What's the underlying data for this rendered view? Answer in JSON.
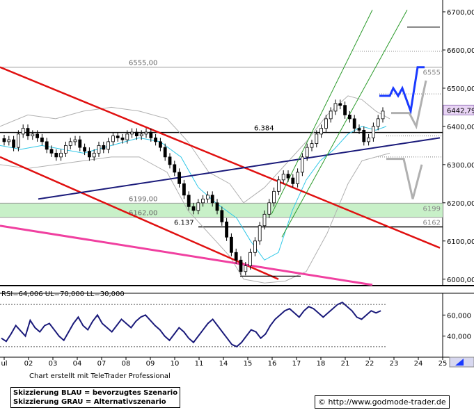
{
  "chart_data": [
    {
      "type": "candlestick",
      "subtype": "price",
      "ylim": [
        5985,
        6720
      ],
      "y_ticks": [
        "6000,00",
        "6100,00",
        "6200,00",
        "6300,00",
        "6400,00",
        "6500,00",
        "6600,00",
        "6700,00"
      ],
      "last_price_label": "6442,79",
      "x_tick_labels": [
        "ul",
        "02",
        "03",
        "04",
        "07",
        "08",
        "09",
        "10",
        "11",
        "14",
        "15",
        "16",
        "17",
        "18",
        "21",
        "22",
        "23",
        "24",
        "25"
      ],
      "horizontal_levels": [
        {
          "value": 6555,
          "label_left": "6555,00",
          "label_right": "6555",
          "color": "#999999"
        },
        {
          "value": 6384,
          "label_left": "6.384",
          "color": "#000000"
        },
        {
          "value": 6199,
          "label_left": "6199,00",
          "label_right": "6199",
          "color": "#999999"
        },
        {
          "value": 6162,
          "label_left": "6162,00",
          "label_right": "6162",
          "color": "#999999"
        },
        {
          "value": 6137,
          "label_left": "6.137",
          "color": "#000000"
        }
      ],
      "support_zone": {
        "from": 6162,
        "to": 6199,
        "color": "#c8f0c8"
      },
      "trend_lines": [
        {
          "name": "red-upper-channel",
          "color": "#e01010"
        },
        {
          "name": "red-lower-channel",
          "color": "#e01010"
        },
        {
          "name": "navy-support",
          "color": "#1a1a7a"
        },
        {
          "name": "pink-support",
          "color": "#f040a0"
        },
        {
          "name": "green-upper",
          "color": "#2a9a2a"
        },
        {
          "name": "green-lower",
          "color": "#2a9a2a"
        }
      ],
      "scenario_colors": {
        "blue": "#1a3aff",
        "grey": "#b0b0b0"
      }
    },
    {
      "type": "line",
      "subtype": "indicator",
      "label": "RSI=64,006 UL=70,000 LL=30,000",
      "ylim": [
        20,
        80
      ],
      "y_ticks": [
        "40,000",
        "60,000"
      ],
      "upper_level": 70,
      "lower_level": 30,
      "color": "#1a1a7a"
    }
  ],
  "footer": {
    "credit": "Chart erstellt mit TeleTrader Professional",
    "legend_blue": "Skizzierung BLAU = bevorzugtes Szenario",
    "legend_grey": "Skizzierung GRAU = Alternativszenario",
    "copyright": "© http://www.godmode-trader.de"
  }
}
